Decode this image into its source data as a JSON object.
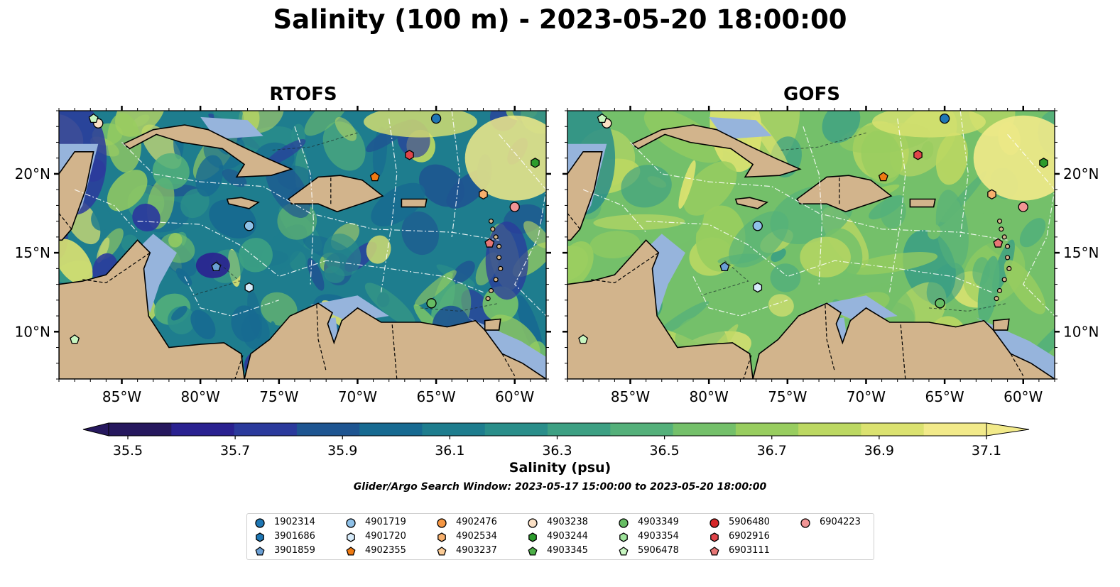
{
  "title": "Salinity (100 m) - 2023-05-20 18:00:00",
  "panels": [
    {
      "title": "RTOFS",
      "field_style": "eddy-rich, fresher interior"
    },
    {
      "title": "GOFS",
      "field_style": "smooth, saltier interior"
    }
  ],
  "map": {
    "lon_ticks": [
      "85°W",
      "80°W",
      "75°W",
      "70°W",
      "65°W",
      "60°W"
    ],
    "lat_ticks": [
      "20°N",
      "15°N",
      "10°N"
    ],
    "lon_range": [
      -89,
      -58
    ],
    "lat_range": [
      7,
      24
    ],
    "colors": {
      "land": "#d2b48c",
      "shelf": "#96b4dc",
      "deep_fresh": "#2a1862"
    }
  },
  "colorbar": {
    "label": "Salinity (psu)",
    "ticks": [
      "35.5",
      "35.7",
      "35.9",
      "36.1",
      "36.3",
      "36.5",
      "36.7",
      "36.9",
      "37.1"
    ],
    "range": [
      35.5,
      37.1
    ],
    "colors": [
      "#26185e",
      "#2a2190",
      "#2b3a9c",
      "#1e5591",
      "#176a91",
      "#1e7d8e",
      "#2a8e8a",
      "#3da083",
      "#54b07a",
      "#74c06a",
      "#98cd5f",
      "#bcd862",
      "#dbe270",
      "#f2ea8a"
    ]
  },
  "search_window": "Glider/Argo Search Window: 2023-05-17 15:00:00 to 2023-05-20 18:00:00",
  "floats": [
    {
      "id": "1902314",
      "marker": "circle",
      "color": "#1f77b4",
      "lon": -65.0,
      "lat": 23.5
    },
    {
      "id": "3901686",
      "marker": "hexagon",
      "color": "#1f77b4",
      "lon": null,
      "lat": null
    },
    {
      "id": "3901859",
      "marker": "pentagon",
      "color": "#6a9fd4",
      "lon": -79.0,
      "lat": 14.1
    },
    {
      "id": "4901719",
      "marker": "circle",
      "color": "#8fc1e8",
      "lon": -76.9,
      "lat": 16.7
    },
    {
      "id": "4901720",
      "marker": "hexagon",
      "color": "#d6ebfa",
      "lon": -76.9,
      "lat": 12.8
    },
    {
      "id": "4902355",
      "marker": "pentagon",
      "color": "#ef7a12",
      "lon": -68.9,
      "lat": 19.8
    },
    {
      "id": "4902476",
      "marker": "circle",
      "color": "#f59643",
      "lon": null,
      "lat": null
    },
    {
      "id": "4902534",
      "marker": "hexagon",
      "color": "#f7b06d",
      "lon": null,
      "lat": null
    },
    {
      "id": "4903237",
      "marker": "pentagon",
      "color": "#fbcb95",
      "lon": null,
      "lat": null
    },
    {
      "id": "4903238",
      "marker": "circle",
      "color": "#fbe0c5",
      "lon": -86.5,
      "lat": 23.2
    },
    {
      "id": "4903244",
      "marker": "hexagon",
      "color": "#2c9c2c",
      "lon": -58.7,
      "lat": 20.7
    },
    {
      "id": "4903345",
      "marker": "pentagon",
      "color": "#4caf47",
      "lon": null,
      "lat": null
    },
    {
      "id": "4903349",
      "marker": "circle",
      "color": "#66bd63",
      "lon": -65.3,
      "lat": 11.8
    },
    {
      "id": "4903354",
      "marker": "hexagon",
      "color": "#9ee39a",
      "lon": null,
      "lat": null
    },
    {
      "id": "5906478",
      "marker": "pentagon",
      "color": "#c7f5c0",
      "lon": -88.0,
      "lat": 9.5
    },
    {
      "id": "5906480",
      "marker": "circle",
      "color": "#d62728",
      "lon": null,
      "lat": null
    },
    {
      "id": "6902916",
      "marker": "hexagon",
      "color": "#e0454a",
      "lon": -66.7,
      "lat": 21.2
    },
    {
      "id": "6903111",
      "marker": "pentagon",
      "color": "#e77675",
      "lon": -61.6,
      "lat": 15.6
    },
    {
      "id": "6904223",
      "marker": "circle",
      "color": "#f19595",
      "lon": -60.0,
      "lat": 17.9
    }
  ],
  "extra_markers": [
    {
      "marker": "hexagon",
      "color": "#f7b06d",
      "lon": -62.0,
      "lat": 18.7
    },
    {
      "marker": "pentagon",
      "color": "#c7f5c0",
      "lon": -86.8,
      "lat": 23.5
    }
  ]
}
